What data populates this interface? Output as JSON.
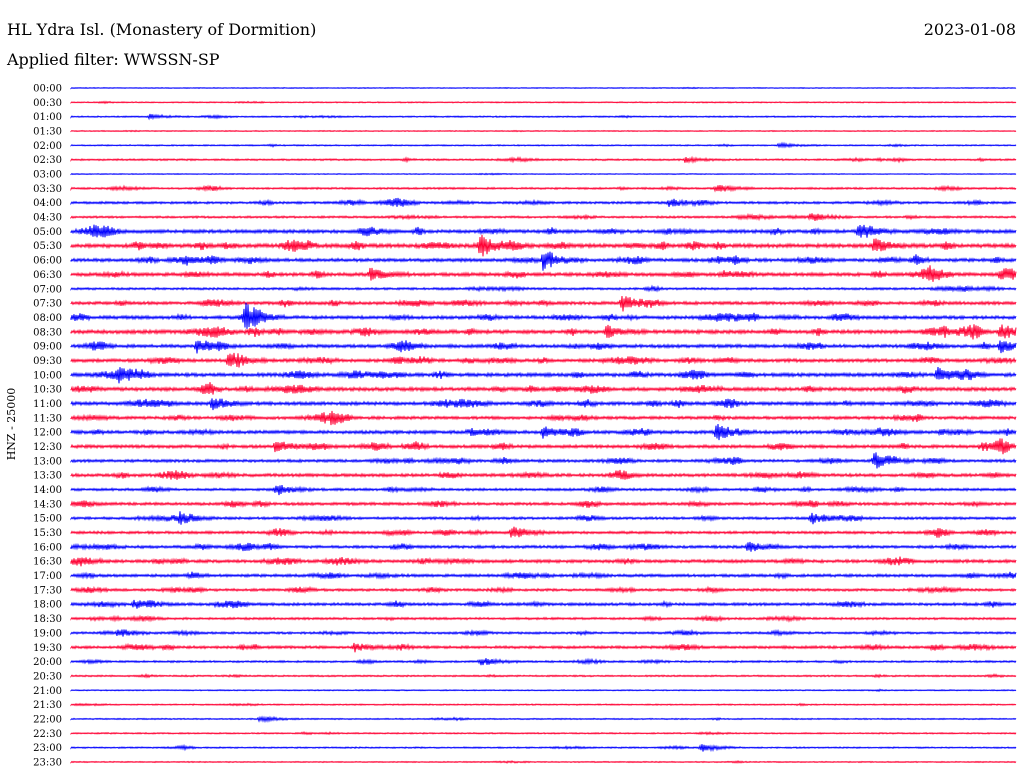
{
  "header": {
    "station": "HL Ydra Isl. (Monastery of Dormition)",
    "date": "2023-01-08",
    "filter": "Applied filter: WWSSN-SP",
    "channel": "HNZ - 25000"
  },
  "colors": {
    "trace_a": "#0000ff",
    "trace_b": "#ff0033"
  },
  "chart_data": {
    "type": "line",
    "title": "HL Ydra Isl. (Monastery of Dormition)",
    "xlabel": "",
    "ylabel": "HNZ - 25000",
    "grid": false,
    "legend": "none",
    "row_labels": [
      "00:00",
      "00:30",
      "01:00",
      "01:30",
      "02:00",
      "02:30",
      "03:00",
      "03:30",
      "04:00",
      "04:30",
      "05:00",
      "05:30",
      "06:00",
      "06:30",
      "07:00",
      "07:30",
      "08:00",
      "08:30",
      "09:00",
      "09:30",
      "10:00",
      "10:30",
      "11:00",
      "11:30",
      "12:00",
      "12:30",
      "13:00",
      "13:30",
      "14:00",
      "14:30",
      "15:00",
      "15:30",
      "16:00",
      "16:30",
      "17:00",
      "17:30",
      "18:00",
      "18:30",
      "19:00",
      "19:30",
      "20:00",
      "20:30",
      "21:00",
      "21:30",
      "22:00",
      "22:30",
      "23:00",
      "23:30"
    ],
    "row_activity": [
      0.3,
      0.6,
      0.9,
      0.4,
      0.8,
      1.4,
      0.3,
      1.6,
      2.2,
      1.8,
      3.6,
      4.2,
      3.4,
      3.6,
      2.0,
      3.2,
      3.4,
      4.0,
      3.4,
      3.4,
      3.8,
      3.8,
      3.6,
      3.0,
      3.4,
      3.2,
      2.8,
      3.2,
      2.4,
      2.8,
      2.4,
      2.6,
      2.8,
      3.2,
      2.8,
      2.4,
      2.8,
      2.0,
      2.0,
      2.6,
      1.6,
      1.2,
      0.6,
      0.8,
      0.8,
      0.9,
      1.0,
      0.6
    ],
    "events": [
      {
        "row": "01:00",
        "minute": 2.5,
        "amplitude": 2.5
      },
      {
        "row": "02:00",
        "minute": 22.5,
        "amplitude": 2.0
      },
      {
        "row": "02:30",
        "minute": 19.5,
        "amplitude": 2.5
      },
      {
        "row": "03:30",
        "minute": 20.5,
        "amplitude": 4.0
      },
      {
        "row": "04:00",
        "minute": 19,
        "amplitude": 4.0
      },
      {
        "row": "04:30",
        "minute": 23.5,
        "amplitude": 4.0
      },
      {
        "row": "05:00",
        "minute": 25,
        "amplitude": 9.0
      },
      {
        "row": "05:30",
        "minute": 13,
        "amplitude": 9.0
      },
      {
        "row": "05:30",
        "minute": 25.5,
        "amplitude": 7.0
      },
      {
        "row": "06:00",
        "minute": 15,
        "amplitude": 11.0
      },
      {
        "row": "06:30",
        "minute": 9.5,
        "amplitude": 6.0
      },
      {
        "row": "06:30",
        "minute": 29.5,
        "amplitude": 5.0
      },
      {
        "row": "07:30",
        "minute": 17.5,
        "amplitude": 9.0
      },
      {
        "row": "08:00",
        "minute": 5.5,
        "amplitude": 13.0
      },
      {
        "row": "08:30",
        "minute": 17,
        "amplitude": 6.0
      },
      {
        "row": "08:30",
        "minute": 29.5,
        "amplitude": 8.0
      },
      {
        "row": "09:00",
        "minute": 4,
        "amplitude": 6.0
      },
      {
        "row": "09:00",
        "minute": 29.5,
        "amplitude": 6.0
      },
      {
        "row": "09:30",
        "minute": 5,
        "amplitude": 6.0
      },
      {
        "row": "10:00",
        "minute": 1.5,
        "amplitude": 6.0
      },
      {
        "row": "10:00",
        "minute": 27.5,
        "amplitude": 8.0
      },
      {
        "row": "11:00",
        "minute": 4.5,
        "amplitude": 7.0
      },
      {
        "row": "12:00",
        "minute": 20.5,
        "amplitude": 10.0
      },
      {
        "row": "12:00",
        "minute": 15,
        "amplitude": 6.0
      },
      {
        "row": "12:30",
        "minute": 6.5,
        "amplitude": 6.0
      },
      {
        "row": "13:00",
        "minute": 25.5,
        "amplitude": 9.0
      },
      {
        "row": "14:00",
        "minute": 6.5,
        "amplitude": 6.0
      },
      {
        "row": "15:00",
        "minute": 3.5,
        "amplitude": 6.0
      },
      {
        "row": "15:00",
        "minute": 23.5,
        "amplitude": 6.0
      },
      {
        "row": "15:30",
        "minute": 14,
        "amplitude": 6.0
      },
      {
        "row": "16:00",
        "minute": 21.5,
        "amplitude": 5.0
      },
      {
        "row": "18:00",
        "minute": 2,
        "amplitude": 4.0
      },
      {
        "row": "19:00",
        "minute": 1.5,
        "amplitude": 4.0
      },
      {
        "row": "19:30",
        "minute": 9,
        "amplitude": 4.0
      },
      {
        "row": "20:00",
        "minute": 13,
        "amplitude": 4.0
      },
      {
        "row": "22:00",
        "minute": 6,
        "amplitude": 3.0
      },
      {
        "row": "23:00",
        "minute": 20,
        "amplitude": 4.0
      }
    ]
  }
}
